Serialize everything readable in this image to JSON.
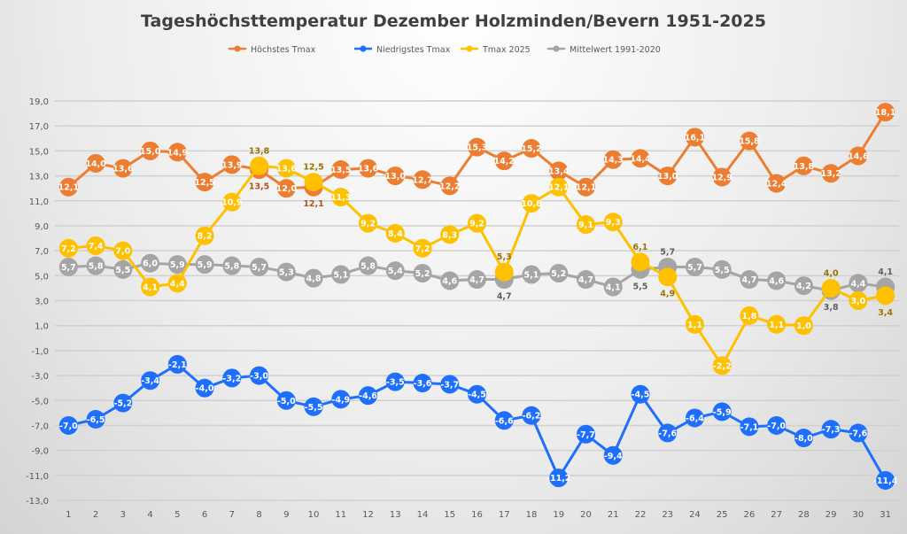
{
  "chart_data": {
    "type": "line",
    "title": "Tageshöchsttemperatur Dezember Holzminden/Bevern 1951-2025",
    "xlabel": "",
    "ylabel": "",
    "x": [
      1,
      2,
      3,
      4,
      5,
      6,
      7,
      8,
      9,
      10,
      11,
      12,
      13,
      14,
      15,
      16,
      17,
      18,
      19,
      20,
      21,
      22,
      23,
      24,
      25,
      26,
      27,
      28,
      29,
      30,
      31
    ],
    "ylim": [
      -13,
      19
    ],
    "yticks": [
      "19,0",
      "17,0",
      "15,0",
      "13,0",
      "11,0",
      "9,0",
      "7,0",
      "5,0",
      "3,0",
      "1,0",
      "-1,0",
      "-3,0",
      "-5,0",
      "-7,0",
      "-9,0",
      "-11,0",
      "-13,0"
    ],
    "grid": true,
    "legend_position": "top",
    "series": [
      {
        "name": "Höchstes Tmax",
        "color": "#ED7D31",
        "values": [
          12.1,
          14.0,
          13.6,
          15.0,
          14.9,
          12.5,
          13.9,
          13.5,
          12.0,
          12.1,
          13.5,
          13.6,
          13.0,
          12.7,
          12.2,
          15.3,
          14.2,
          15.2,
          13.4,
          12.1,
          14.3,
          14.4,
          13.0,
          16.1,
          12.9,
          15.8,
          12.4,
          13.8,
          13.2,
          14.6,
          18.1
        ]
      },
      {
        "name": "Niedrigstes Tmax",
        "color": "#1F6FFF",
        "values": [
          -7.0,
          -6.5,
          -5.2,
          -3.4,
          -2.1,
          -4.0,
          -3.2,
          -3.0,
          -5.0,
          -5.5,
          -4.9,
          -4.6,
          -3.5,
          -3.6,
          -3.7,
          -4.5,
          -6.6,
          -6.2,
          -11.2,
          -7.7,
          -9.4,
          -4.5,
          -7.6,
          -6.4,
          -5.9,
          -7.1,
          -7.0,
          -8.0,
          -7.3,
          -7.6,
          -11.4
        ]
      },
      {
        "name": "Tmax 2025",
        "color": "#FFC000",
        "values": [
          7.2,
          7.4,
          7.0,
          4.1,
          4.4,
          8.2,
          10.9,
          13.8,
          13.6,
          12.5,
          11.3,
          9.2,
          8.4,
          7.2,
          8.3,
          9.2,
          5.3,
          10.8,
          12.1,
          9.1,
          9.3,
          6.1,
          4.9,
          1.1,
          -2.2,
          1.8,
          1.1,
          1.0,
          4.0,
          3.0,
          3.4
        ]
      },
      {
        "name": "Mittelwert 1991-2020",
        "color": "#A5A5A5",
        "values": [
          5.7,
          5.8,
          5.5,
          6.0,
          5.9,
          5.9,
          5.8,
          5.7,
          5.3,
          4.8,
          5.1,
          5.8,
          5.4,
          5.2,
          4.6,
          4.7,
          4.7,
          5.1,
          5.2,
          4.7,
          4.1,
          5.5,
          5.7,
          5.7,
          5.5,
          4.7,
          4.6,
          4.2,
          3.8,
          4.4,
          4.1
        ]
      }
    ]
  }
}
